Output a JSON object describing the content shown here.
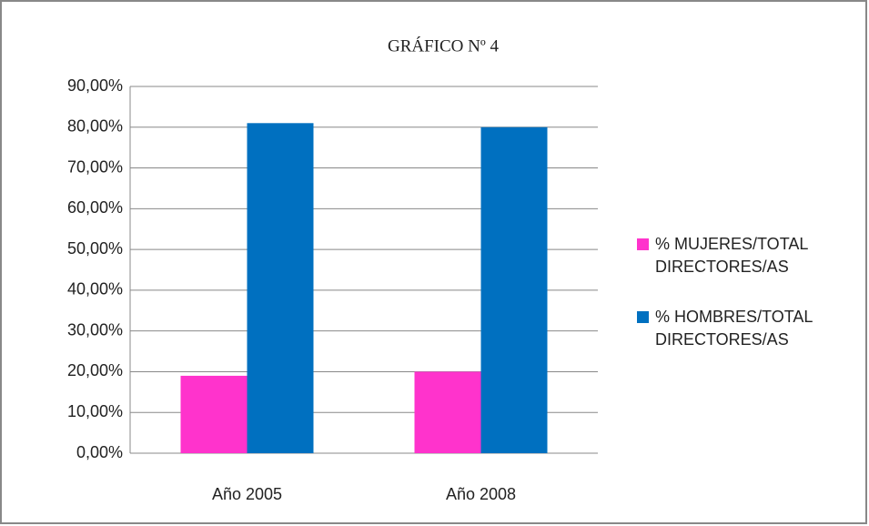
{
  "chart_data": {
    "type": "bar",
    "title": "GRÁFICO Nº 4",
    "categories": [
      "Año 2005",
      "Año 2008"
    ],
    "series": [
      {
        "name": "% MUJERES/TOTAL DIRECTORES/AS",
        "color": "#ff33cc",
        "values": [
          19,
          20
        ]
      },
      {
        "name": "% HOMBRES/TOTAL DIRECTORES/AS",
        "color": "#0070c0",
        "values": [
          81,
          80
        ]
      }
    ],
    "ylim": [
      0,
      90
    ],
    "yticks": [
      {
        "value": 0,
        "label": "0,00%"
      },
      {
        "value": 10,
        "label": "10,00%"
      },
      {
        "value": 20,
        "label": "20,00%"
      },
      {
        "value": 30,
        "label": "30,00%"
      },
      {
        "value": 40,
        "label": "40,00%"
      },
      {
        "value": 50,
        "label": "50,00%"
      },
      {
        "value": 60,
        "label": "60,00%"
      },
      {
        "value": 70,
        "label": "70,00%"
      },
      {
        "value": 80,
        "label": "80,00%"
      },
      {
        "value": 90,
        "label": "90,00%"
      }
    ],
    "grid": true,
    "legend": "right"
  }
}
